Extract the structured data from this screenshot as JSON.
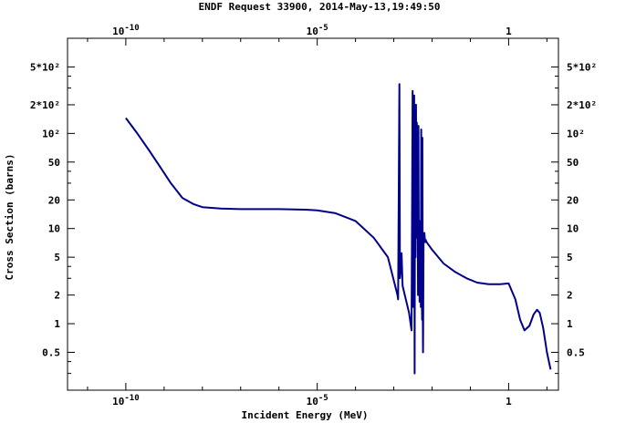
{
  "chart_data": {
    "type": "line",
    "title": "ENDF Request 33900, 2014-May-13,19:49:50",
    "xlabel": "Incident Energy (MeV)",
    "ylabel": "Cross Section (barns)",
    "x_scale": "log",
    "y_scale": "log",
    "xlim": [
      3e-12,
      20
    ],
    "ylim": [
      0.2,
      1000
    ],
    "grid": false,
    "line_color": "#00008b",
    "x_ticks": [
      {
        "value": 1e-10,
        "label": "10-10"
      },
      {
        "value": 1e-05,
        "label": "10-5"
      },
      {
        "value": 1,
        "label": "1"
      }
    ],
    "y_ticks": [
      {
        "value": 500,
        "label": "5*10²"
      },
      {
        "value": 200,
        "label": "2*10²"
      },
      {
        "value": 100,
        "label": "10²"
      },
      {
        "value": 50,
        "label": "50"
      },
      {
        "value": 20,
        "label": "20"
      },
      {
        "value": 10,
        "label": "10"
      },
      {
        "value": 5,
        "label": "5"
      },
      {
        "value": 2,
        "label": "2"
      },
      {
        "value": 1,
        "label": "1"
      },
      {
        "value": 0.5,
        "label": "0.5"
      }
    ],
    "series": [
      {
        "x": [
          1e-10,
          2e-10,
          4e-10,
          8e-10,
          1.5e-09,
          3e-09,
          6e-09,
          1e-08,
          3e-08,
          1e-07,
          1e-06,
          5e-06,
          1e-05,
          3e-05,
          0.0001,
          0.0003,
          0.0007,
          0.00125,
          0.0013,
          0.0014,
          0.00145,
          0.0015,
          0.0016,
          0.0017,
          0.0025,
          0.0028,
          0.0029,
          0.0031,
          0.0032,
          0.0034,
          0.0035,
          0.0036,
          0.0037,
          0.0038,
          0.0039,
          0.004,
          0.0041,
          0.0042,
          0.0043,
          0.0044,
          0.0045,
          0.0046,
          0.0047,
          0.0048,
          0.0049,
          0.005,
          0.0051,
          0.0052,
          0.0053,
          0.0054,
          0.0055,
          0.0056,
          0.0057,
          0.0058,
          0.006,
          0.0062,
          0.0063,
          0.0065,
          0.0067,
          0.0068,
          0.0072,
          0.01,
          0.02,
          0.04,
          0.08,
          0.15,
          0.3,
          0.6,
          1.0,
          1.5,
          2.0,
          2.6,
          3.5,
          4.5,
          5.5,
          6.5,
          8.0,
          10.0,
          12.5
        ],
        "y": [
          145,
          100,
          67,
          44,
          30,
          21,
          18,
          16.8,
          16.2,
          16,
          16,
          15.8,
          15.5,
          14.5,
          12,
          8,
          5,
          2,
          1.8,
          330,
          3,
          3.5,
          5.5,
          2.5,
          1.3,
          0.95,
          0.85,
          280,
          1.5,
          250,
          0.3,
          100,
          5,
          200,
          8,
          130,
          12,
          15,
          2,
          120,
          5,
          10,
          1.7,
          12,
          3.5,
          8,
          1.5,
          110,
          4,
          2,
          1.1,
          90,
          1.5,
          0.5,
          8,
          8,
          9,
          7.5,
          7.2,
          7.6,
          7.2,
          6,
          4.3,
          3.5,
          3.0,
          2.7,
          2.6,
          2.6,
          2.65,
          1.8,
          1.1,
          0.85,
          0.95,
          1.25,
          1.4,
          1.3,
          0.9,
          0.5,
          0.33
        ]
      }
    ]
  }
}
